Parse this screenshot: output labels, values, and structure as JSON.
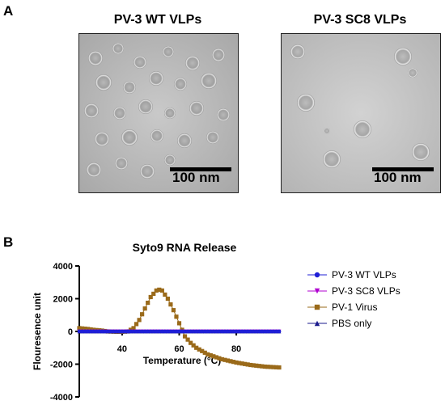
{
  "panel_a": {
    "letter": "A",
    "images": [
      {
        "title": "PV-3 WT VLPs",
        "scale_bar": "100 nm"
      },
      {
        "title": "PV-3 SC8 VLPs",
        "scale_bar": "100 nm"
      }
    ]
  },
  "panel_b": {
    "letter": "B"
  },
  "chart_data": {
    "type": "line",
    "title": "Syto9 RNA Release",
    "xlabel": "Temperature (°C)",
    "ylabel": "Flouresence unit",
    "xlim": [
      25,
      95
    ],
    "ylim": [
      -4000,
      4000
    ],
    "xticks": [
      40,
      60,
      80
    ],
    "yticks": [
      -4000,
      -2000,
      0,
      2000,
      4000
    ],
    "grid": false,
    "legend_position": "right",
    "series": [
      {
        "name": "PV-3 WT VLPs",
        "color": "#1f1fd6",
        "marker": "circle",
        "x": [
          25,
          35,
          45,
          55,
          65,
          75,
          85,
          95
        ],
        "y": [
          0,
          0,
          0,
          0,
          0,
          0,
          0,
          0
        ]
      },
      {
        "name": "PV-3 SC8 VLPs",
        "color": "#b000d0",
        "marker": "triangle-down",
        "x": [
          25,
          35,
          45,
          55,
          65,
          75,
          85,
          95
        ],
        "y": [
          0,
          0,
          0,
          0,
          0,
          0,
          0,
          0
        ]
      },
      {
        "name": "PV-1 Virus",
        "color": "#9a6a1a",
        "marker": "square",
        "x": [
          25,
          28,
          30,
          33,
          35,
          38,
          40,
          42,
          44,
          46,
          48,
          50,
          52,
          53,
          54,
          56,
          58,
          60,
          62,
          64,
          66,
          68,
          70,
          75,
          80,
          85,
          90,
          95
        ],
        "y": [
          200,
          150,
          100,
          50,
          0,
          -20,
          -20,
          0,
          200,
          700,
          1400,
          2100,
          2500,
          2550,
          2500,
          2000,
          1300,
          500,
          -300,
          -700,
          -1000,
          -1200,
          -1400,
          -1700,
          -1900,
          -2050,
          -2150,
          -2200
        ]
      },
      {
        "name": "PBS only",
        "color": "#1a1a8c",
        "marker": "triangle-up",
        "x": [
          25,
          35,
          45,
          55,
          65,
          75,
          85,
          95
        ],
        "y": [
          0,
          0,
          0,
          0,
          0,
          0,
          0,
          0
        ]
      }
    ]
  }
}
